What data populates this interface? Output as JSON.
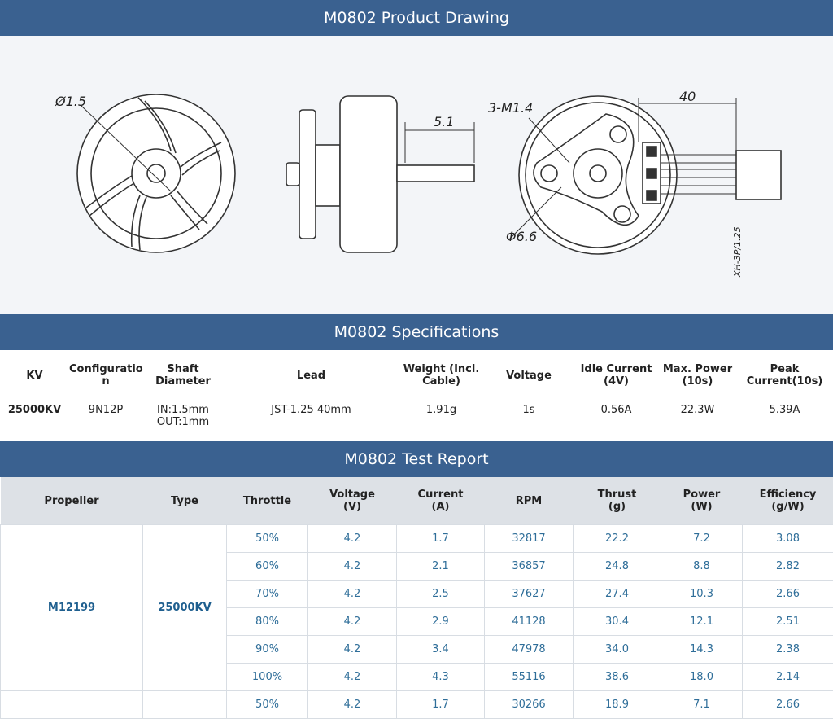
{
  "drawing": {
    "title": "M0802 Product Drawing",
    "labels": {
      "shaft": "Ø1.5",
      "length": "5.1",
      "screws": "3-M1.4",
      "lead": "40",
      "pcd": "Φ6.6",
      "connector": "XH-3P/1.25"
    }
  },
  "specifications": {
    "title": "M0802 Specifications",
    "headers": [
      "KV",
      [
        "Configuratio",
        "n"
      ],
      [
        "Shaft",
        "Diameter"
      ],
      "Lead",
      [
        "Weight (Incl.",
        "Cable)"
      ],
      "Voltage",
      [
        "Idle Current",
        "(4V)"
      ],
      [
        "Max. Power",
        "(10s)"
      ],
      [
        "Peak",
        "Current(10s)"
      ]
    ],
    "values": [
      "25000KV",
      "9N12P",
      [
        "IN:1.5mm",
        "OUT:1mm"
      ],
      "JST-1.25 40mm",
      "1.91g",
      "1s",
      "0.56A",
      "22.3W",
      "5.39A"
    ]
  },
  "test_report": {
    "title": "M0802 Test Report",
    "headers": [
      "Propeller",
      "Type",
      "Throttle",
      [
        "Voltage",
        "(V)"
      ],
      [
        "Current",
        "(A)"
      ],
      "RPM",
      [
        "Thrust",
        "(g)"
      ],
      [
        "Power",
        "(W)"
      ],
      [
        "Efficiency",
        "(g/W)"
      ]
    ],
    "groups": [
      {
        "propeller": "M12199",
        "type": "25000KV",
        "rows": [
          [
            "50%",
            "4.2",
            "1.7",
            "32817",
            "22.2",
            "7.2",
            "3.08"
          ],
          [
            "60%",
            "4.2",
            "2.1",
            "36857",
            "24.8",
            "8.8",
            "2.82"
          ],
          [
            "70%",
            "4.2",
            "2.5",
            "37627",
            "27.4",
            "10.3",
            "2.66"
          ],
          [
            "80%",
            "4.2",
            "2.9",
            "41128",
            "30.4",
            "12.1",
            "2.51"
          ],
          [
            "90%",
            "4.2",
            "3.4",
            "47978",
            "34.0",
            "14.3",
            "2.38"
          ],
          [
            "100%",
            "4.2",
            "4.3",
            "55116",
            "38.6",
            "18.0",
            "2.14"
          ]
        ]
      },
      {
        "rows": [
          [
            "50%",
            "4.2",
            "1.7",
            "30266",
            "18.9",
            "7.1",
            "2.66"
          ]
        ]
      }
    ]
  }
}
